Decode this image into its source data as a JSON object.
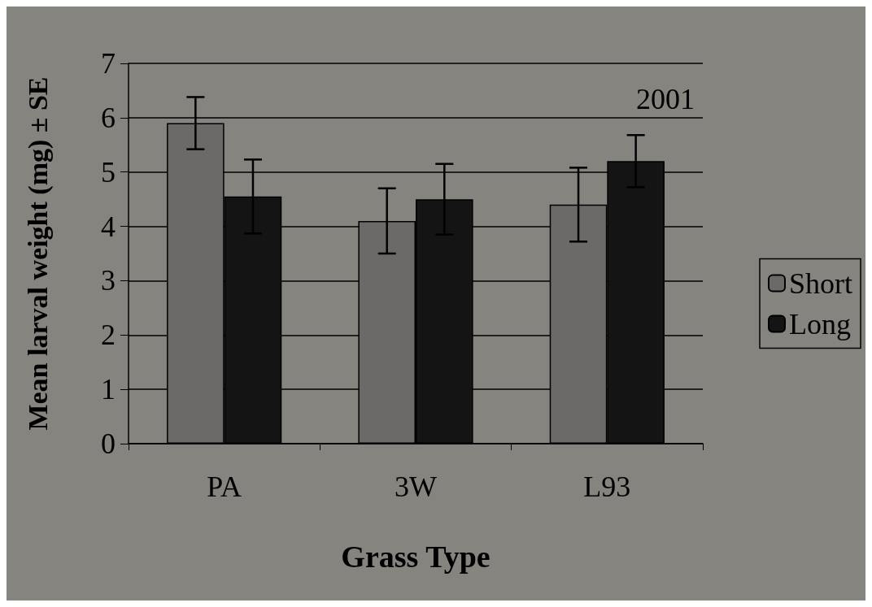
{
  "chart_data": {
    "type": "bar",
    "xlabel": "Grass Type",
    "ylabel": "Mean larval weight (mg) ± SE",
    "categories": [
      "PA",
      "3W",
      "L93"
    ],
    "series": [
      {
        "name": "Short",
        "color": "#6b6a68",
        "values": [
          5.9,
          4.1,
          4.4
        ],
        "errors": [
          0.48,
          0.6,
          0.68
        ]
      },
      {
        "name": "Long",
        "color": "#141414",
        "values": [
          4.55,
          4.5,
          5.2
        ],
        "errors": [
          0.68,
          0.65,
          0.48
        ]
      }
    ],
    "ylim": [
      0,
      7
    ],
    "yticks": [
      0,
      1,
      2,
      3,
      4,
      5,
      6,
      7
    ],
    "grid": "y",
    "legend": "right",
    "annotations": [
      "2001"
    ]
  }
}
